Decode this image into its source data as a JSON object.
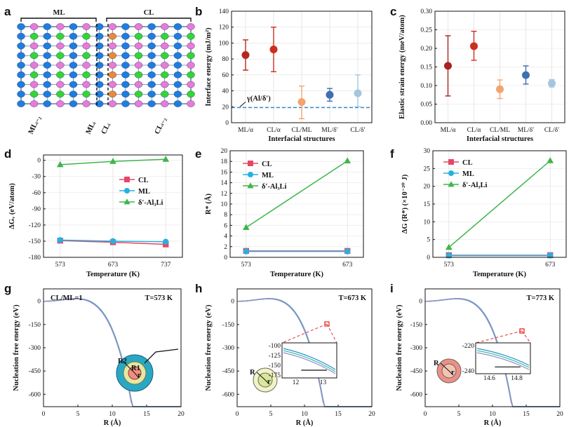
{
  "panel_labels": [
    "a",
    "b",
    "c",
    "d",
    "e",
    "f",
    "g",
    "h",
    "i"
  ],
  "panel_a": {
    "ml_label": "ML",
    "cl_label": "CL",
    "bottom_labels": [
      "MLᵢ₋₂",
      "MLᵢ",
      "CLᵢ",
      "CLᵢ₋₂"
    ],
    "colors": {
      "blue": "#1f7de0",
      "pink": "#e87ad8",
      "green": "#33d633",
      "orange": "#ea8a36",
      "frame": "#1b3b6b"
    }
  },
  "chart_data": [
    {
      "id": "b",
      "type": "scatter",
      "title": "",
      "xlabel": "Interfacial structures",
      "ylabel": "Interface energy (mJ/m²)",
      "categories": [
        "ML/α",
        "CL/α",
        "CL/ML",
        "ML/δ′",
        "CL/δ′"
      ],
      "values": [
        85,
        92,
        26,
        35,
        37
      ],
      "error_low": [
        66,
        64,
        5,
        27,
        20
      ],
      "error_high": [
        104,
        120,
        46,
        43,
        60
      ],
      "colors": [
        "#b5281d",
        "#cc2f20",
        "#f2a46e",
        "#3f6fb0",
        "#a4c6e0"
      ],
      "ylim": [
        0,
        140
      ],
      "yticks": [
        0,
        20,
        40,
        60,
        80,
        100,
        120,
        140
      ],
      "reference_line": {
        "value": 19,
        "label": "γ(Al/δ′)",
        "color": "#2a8ad6"
      }
    },
    {
      "id": "c",
      "type": "scatter",
      "title": "",
      "xlabel": "Interfacial structures",
      "ylabel": "Elastic strain energy (meV/atom)",
      "categories": [
        "ML/α",
        "CL/α",
        "CL/ML",
        "ML/δ′",
        "CL/δ′"
      ],
      "values": [
        0.153,
        0.206,
        0.09,
        0.128,
        0.106
      ],
      "error_low": [
        0.072,
        0.168,
        0.065,
        0.104,
        0.096
      ],
      "error_high": [
        0.234,
        0.246,
        0.115,
        0.153,
        0.116
      ],
      "colors": [
        "#a82220",
        "#cc2f20",
        "#f2a46e",
        "#3f6fb0",
        "#a4c6e0"
      ],
      "ylim": [
        0,
        0.3
      ],
      "yticks": [
        "0.00",
        "0.05",
        "0.10",
        "0.15",
        "0.20",
        "0.25",
        "0.30"
      ]
    },
    {
      "id": "d",
      "type": "line",
      "title": "",
      "xlabel": "Temperature (K)",
      "ylabel": "ΔGᵥ (eV/atom)",
      "x": [
        573,
        673,
        737
      ],
      "xticks": [
        "573",
        "673",
        "737"
      ],
      "series": [
        {
          "name": "CL",
          "values": [
            -149,
            -152,
            -156
          ],
          "color": "#e44866",
          "marker": "square"
        },
        {
          "name": "ML",
          "values": [
            -148,
            -150,
            -151
          ],
          "color": "#27b0e0",
          "marker": "circle"
        },
        {
          "name": "δ′-Al₃Li",
          "values": [
            -8,
            -2,
            2
          ],
          "color": "#3fb54a",
          "marker": "triangle"
        }
      ],
      "ylim": [
        -180,
        10
      ],
      "yticks": [
        "0",
        "-30",
        "-60",
        "-90",
        "-120",
        "-150",
        "-180"
      ],
      "legend_position": "right"
    },
    {
      "id": "e",
      "type": "line",
      "title": "",
      "xlabel": "Temperature (K)",
      "ylabel": "R* (Å)",
      "x": [
        573,
        673
      ],
      "xticks": [
        "573",
        "673"
      ],
      "series": [
        {
          "name": "CL",
          "values": [
            1.2,
            1.2
          ],
          "color": "#e44866",
          "marker": "square"
        },
        {
          "name": "ML",
          "values": [
            1.1,
            1.1
          ],
          "color": "#27b0e0",
          "marker": "circle"
        },
        {
          "name": "δ′-Al₃Li",
          "values": [
            5.6,
            18.1
          ],
          "color": "#3fb54a",
          "marker": "triangle"
        }
      ],
      "ylim": [
        0,
        20
      ],
      "yticks": [
        "0",
        "2",
        "4",
        "6",
        "8",
        "10",
        "12",
        "14",
        "16",
        "18",
        "20"
      ],
      "legend_position": "top-left"
    },
    {
      "id": "f",
      "type": "line",
      "title": "",
      "xlabel": "Temperature (K)",
      "ylabel": "ΔG (R*) (×10⁻²⁰ J)",
      "x": [
        573,
        673
      ],
      "xticks": [
        "573",
        "673"
      ],
      "series": [
        {
          "name": "CL",
          "values": [
            0.6,
            0.6
          ],
          "color": "#e44866",
          "marker": "square"
        },
        {
          "name": "ML",
          "values": [
            0.5,
            0.5
          ],
          "color": "#27b0e0",
          "marker": "circle"
        },
        {
          "name": "δ′-Al₃Li",
          "values": [
            2.8,
            27.2
          ],
          "color": "#3fb54a",
          "marker": "triangle"
        }
      ],
      "ylim": [
        0,
        30
      ],
      "yticks": [
        "0",
        "5",
        "10",
        "15",
        "20",
        "25",
        "30"
      ],
      "legend_position": "top-left"
    },
    {
      "id": "g",
      "type": "line",
      "title": "",
      "xlabel": "R (Å)",
      "ylabel": "Nucleation free energy (eV)",
      "annotations": [
        "CL/ML=1",
        "T=573 K"
      ],
      "inset_labels": [
        "R2",
        "R1",
        "r"
      ],
      "xlim": [
        0,
        20
      ],
      "xticks": [
        "0",
        "5",
        "10",
        "15",
        "20"
      ],
      "ylim": [
        -680,
        80
      ],
      "yticks": [
        "0",
        "-150",
        "-300",
        "-450",
        "-600"
      ],
      "curves": [
        {
          "a": 0,
          "b": 1.52,
          "c": 0.16,
          "color": "#2f8fd0"
        },
        {
          "a": 0,
          "b": 1.48,
          "c": 0.16,
          "color": "#39c3a0"
        },
        {
          "a": 0,
          "b": 1.44,
          "c": 0.16,
          "color": "#9a8ac8"
        }
      ]
    },
    {
      "id": "h",
      "type": "line",
      "title": "",
      "xlabel": "R (Å)",
      "ylabel": "Nucleation free energy (eV)",
      "annotations": [
        "T=673 K"
      ],
      "inset_labels": [
        "R",
        "r"
      ],
      "inset_ticks_x": [
        "12",
        "13"
      ],
      "inset_ticks_y": [
        "-100",
        "-125",
        "-150",
        "-175"
      ],
      "xlim": [
        0,
        20
      ],
      "xticks": [
        "0",
        "5",
        "10",
        "15",
        "20"
      ],
      "ylim": [
        -680,
        80
      ],
      "yticks": [
        "0",
        "-150",
        "-300",
        "-450",
        "-600"
      ],
      "curves": [
        {
          "a": 0,
          "b": 1.52,
          "c": 0.16,
          "color": "#2f8fd0"
        },
        {
          "a": 0,
          "b": 1.48,
          "c": 0.16,
          "color": "#39c3a0"
        },
        {
          "a": 0,
          "b": 1.44,
          "c": 0.16,
          "color": "#9a8ac8"
        }
      ]
    },
    {
      "id": "i",
      "type": "line",
      "title": "",
      "xlabel": "R (Å)",
      "ylabel": "Nucleation free energy (eV)",
      "annotations": [
        "T=773 K"
      ],
      "inset_labels": [
        "R",
        "r"
      ],
      "inset_ticks_x": [
        "14.6",
        "14.8"
      ],
      "inset_ticks_y": [
        "-220",
        "-240"
      ],
      "xlim": [
        0,
        20
      ],
      "xticks": [
        "0",
        "5",
        "10",
        "15",
        "20"
      ],
      "ylim": [
        -680,
        80
      ],
      "yticks": [
        "0",
        "-150",
        "-300",
        "-450",
        "-600"
      ],
      "curves": [
        {
          "a": 0,
          "b": 1.52,
          "c": 0.16,
          "color": "#2f8fd0"
        },
        {
          "a": 0,
          "b": 1.48,
          "c": 0.16,
          "color": "#39c3a0"
        },
        {
          "a": 0,
          "b": 1.44,
          "c": 0.16,
          "color": "#9a8ac8"
        }
      ]
    }
  ]
}
